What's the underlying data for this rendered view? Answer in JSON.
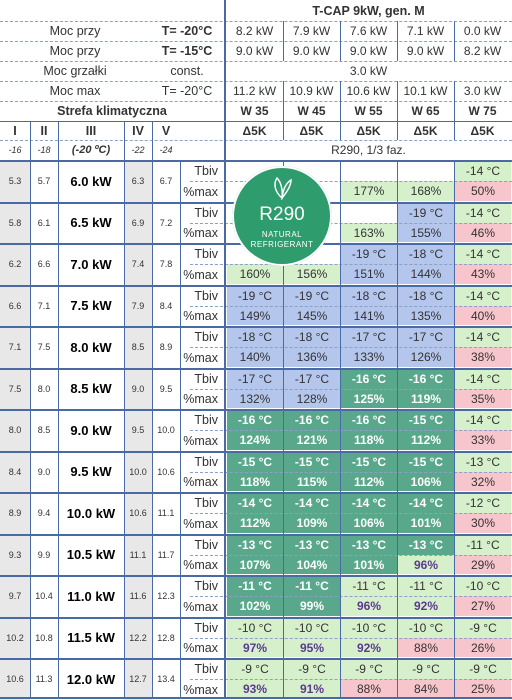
{
  "header": {
    "title": "T-CAP 9kW, gen. M",
    "power_rows": [
      {
        "label": "Moc przy",
        "cond": "T= -20°C",
        "values": [
          "8.2 kW",
          "7.9 kW",
          "7.6 kW",
          "7.1 kW",
          "0.0 kW"
        ]
      },
      {
        "label": "Moc przy",
        "cond": "T= -15°C",
        "values": [
          "9.0 kW",
          "9.0 kW",
          "9.0 kW",
          "9.0 kW",
          "8.2 kW"
        ]
      }
    ],
    "heater": {
      "label": "Moc grzałki",
      "cond": "const.",
      "value": "3.0 kW"
    },
    "max": {
      "label": "Moc max",
      "cond": "T= -20°C",
      "values": [
        "11.2 kW",
        "10.9 kW",
        "10.6 kW",
        "10.1 kW",
        "3.0 kW"
      ]
    },
    "zone_title": "Strefa klimatyczna",
    "columns": [
      "W 35",
      "W 45",
      "W 55",
      "W 65",
      "W 75"
    ],
    "delta": [
      "Δ5K",
      "Δ5K",
      "Δ5K",
      "Δ5K",
      "Δ5K"
    ],
    "zones": [
      "I",
      "II",
      "III",
      "IV",
      "V"
    ],
    "zone_temps": [
      "-16",
      "-18",
      "(-20 ºC)",
      "-22",
      "-24"
    ],
    "refrigerant": "R290, 1/3 faz."
  },
  "badge": {
    "text": "R290",
    "sub1": "NATURAL",
    "sub2": "REFRIGERANT"
  },
  "row_labels": {
    "tbiv": "Tbiv",
    "pmax": "%max"
  },
  "colors": {
    "grid": "#4a6aa6",
    "blue": "#b4c6ec",
    "green_light": "#d6f0cc",
    "green": "#5aa88c",
    "pink": "#f7c6cc",
    "badge": "#2e9c6c"
  },
  "rows": [
    {
      "z1": "5.3",
      "z2": "5.7",
      "kw": "6.0 kW",
      "z4": "6.3",
      "z5": "6.7",
      "tbiv": [
        "",
        "",
        "",
        "",
        "-14 °C"
      ],
      "tbiv_s": [
        "w",
        "w",
        "w",
        "w",
        "g"
      ],
      "pmax": [
        "",
        "",
        "177%",
        "168%",
        "50%"
      ],
      "pmax_s": [
        "w",
        "w",
        "g",
        "g",
        "p"
      ]
    },
    {
      "z1": "5.8",
      "z2": "6.1",
      "kw": "6.5 kW",
      "z4": "6.9",
      "z5": "7.2",
      "tbiv": [
        "",
        "",
        "",
        "-19 °C",
        "-14 °C"
      ],
      "tbiv_s": [
        "w",
        "w",
        "w",
        "b",
        "g"
      ],
      "pmax": [
        "",
        "",
        "163%",
        "155%",
        "46%"
      ],
      "pmax_s": [
        "w",
        "w",
        "g",
        "b",
        "p"
      ]
    },
    {
      "z1": "6.2",
      "z2": "6.6",
      "kw": "7.0 kW",
      "z4": "7.4",
      "z5": "7.8",
      "tbiv": [
        "",
        "",
        "-19 °C",
        "-18 °C",
        "-14 °C"
      ],
      "tbiv_s": [
        "w",
        "w",
        "b",
        "b",
        "g"
      ],
      "pmax": [
        "160%",
        "156%",
        "151%",
        "144%",
        "43%"
      ],
      "pmax_s": [
        "g",
        "g",
        "b",
        "b",
        "p"
      ]
    },
    {
      "z1": "6.6",
      "z2": "7.1",
      "kw": "7.5 kW",
      "z4": "7.9",
      "z5": "8.4",
      "tbiv": [
        "-19 °C",
        "-19 °C",
        "-18 °C",
        "-18 °C",
        "-14 °C"
      ],
      "tbiv_s": [
        "b",
        "b",
        "b",
        "b",
        "g"
      ],
      "pmax": [
        "149%",
        "145%",
        "141%",
        "135%",
        "40%"
      ],
      "pmax_s": [
        "b",
        "b",
        "b",
        "b",
        "p"
      ]
    },
    {
      "z1": "7.1",
      "z2": "7.5",
      "kw": "8.0 kW",
      "z4": "8.5",
      "z5": "8.9",
      "tbiv": [
        "-18 °C",
        "-18 °C",
        "-17 °C",
        "-17 °C",
        "-14 °C"
      ],
      "tbiv_s": [
        "b",
        "b",
        "b",
        "b",
        "g"
      ],
      "pmax": [
        "140%",
        "136%",
        "133%",
        "126%",
        "38%"
      ],
      "pmax_s": [
        "b",
        "b",
        "b",
        "b",
        "p"
      ]
    },
    {
      "z1": "7.5",
      "z2": "8.0",
      "kw": "8.5 kW",
      "z4": "9.0",
      "z5": "9.5",
      "tbiv": [
        "-17 °C",
        "-17 °C",
        "-16 °C",
        "-16 °C",
        "-14 °C"
      ],
      "tbiv_s": [
        "b",
        "b",
        "G",
        "G",
        "g"
      ],
      "pmax": [
        "132%",
        "128%",
        "125%",
        "119%",
        "35%"
      ],
      "pmax_s": [
        "b",
        "b",
        "G",
        "G",
        "p"
      ]
    },
    {
      "z1": "8.0",
      "z2": "8.5",
      "kw": "9.0 kW",
      "z4": "9.5",
      "z5": "10.0",
      "tbiv": [
        "-16 °C",
        "-16 °C",
        "-16 °C",
        "-15 °C",
        "-14 °C"
      ],
      "tbiv_s": [
        "G",
        "G",
        "G",
        "G",
        "g"
      ],
      "pmax": [
        "124%",
        "121%",
        "118%",
        "112%",
        "33%"
      ],
      "pmax_s": [
        "G",
        "G",
        "G",
        "G",
        "p"
      ]
    },
    {
      "z1": "8.4",
      "z2": "9.0",
      "kw": "9.5 kW",
      "z4": "10.0",
      "z5": "10.6",
      "tbiv": [
        "-15 °C",
        "-15 °C",
        "-15 °C",
        "-15 °C",
        "-13 °C"
      ],
      "tbiv_s": [
        "G",
        "G",
        "G",
        "G",
        "g"
      ],
      "pmax": [
        "118%",
        "115%",
        "112%",
        "106%",
        "32%"
      ],
      "pmax_s": [
        "G",
        "G",
        "G",
        "G",
        "p"
      ]
    },
    {
      "z1": "8.9",
      "z2": "9.4",
      "kw": "10.0 kW",
      "z4": "10.6",
      "z5": "11.1",
      "tbiv": [
        "-14 °C",
        "-14 °C",
        "-14 °C",
        "-14 °C",
        "-12 °C"
      ],
      "tbiv_s": [
        "G",
        "G",
        "G",
        "G",
        "g"
      ],
      "pmax": [
        "112%",
        "109%",
        "106%",
        "101%",
        "30%"
      ],
      "pmax_s": [
        "G",
        "G",
        "G",
        "G",
        "p"
      ]
    },
    {
      "z1": "9.3",
      "z2": "9.9",
      "kw": "10.5 kW",
      "z4": "11.1",
      "z5": "11.7",
      "tbiv": [
        "-13 °C",
        "-13 °C",
        "-13 °C",
        "-13 °C",
        "-11 °C"
      ],
      "tbiv_s": [
        "G",
        "G",
        "G",
        "G",
        "g"
      ],
      "pmax": [
        "107%",
        "104%",
        "101%",
        "96%",
        "29%"
      ],
      "pmax_s": [
        "G",
        "G",
        "G",
        "gp",
        "p"
      ]
    },
    {
      "z1": "9.7",
      "z2": "10.4",
      "kw": "11.0 kW",
      "z4": "11.6",
      "z5": "12.3",
      "tbiv": [
        "-11 °C",
        "-11 °C",
        "-11 °C",
        "-11 °C",
        "-10 °C"
      ],
      "tbiv_s": [
        "G",
        "G",
        "g",
        "g",
        "g"
      ],
      "pmax": [
        "102%",
        "99%",
        "96%",
        "92%",
        "27%"
      ],
      "pmax_s": [
        "G",
        "G",
        "gp",
        "gp",
        "p"
      ]
    },
    {
      "z1": "10.2",
      "z2": "10.8",
      "kw": "11.5 kW",
      "z4": "12.2",
      "z5": "12.8",
      "tbiv": [
        "-10 °C",
        "-10 °C",
        "-10 °C",
        "-10 °C",
        "-9 °C"
      ],
      "tbiv_s": [
        "g",
        "g",
        "g",
        "g",
        "g"
      ],
      "pmax": [
        "97%",
        "95%",
        "92%",
        "88%",
        "26%"
      ],
      "pmax_s": [
        "gp",
        "gp",
        "gp",
        "p",
        "p"
      ]
    },
    {
      "z1": "10.6",
      "z2": "11.3",
      "kw": "12.0 kW",
      "z4": "12.7",
      "z5": "13.4",
      "tbiv": [
        "-9 °C",
        "-9 °C",
        "-9 °C",
        "-9 °C",
        "-9 °C"
      ],
      "tbiv_s": [
        "g",
        "g",
        "g",
        "g",
        "g"
      ],
      "pmax": [
        "93%",
        "91%",
        "88%",
        "84%",
        "25%"
      ],
      "pmax_s": [
        "gp",
        "gp",
        "p",
        "p",
        "p"
      ]
    }
  ]
}
